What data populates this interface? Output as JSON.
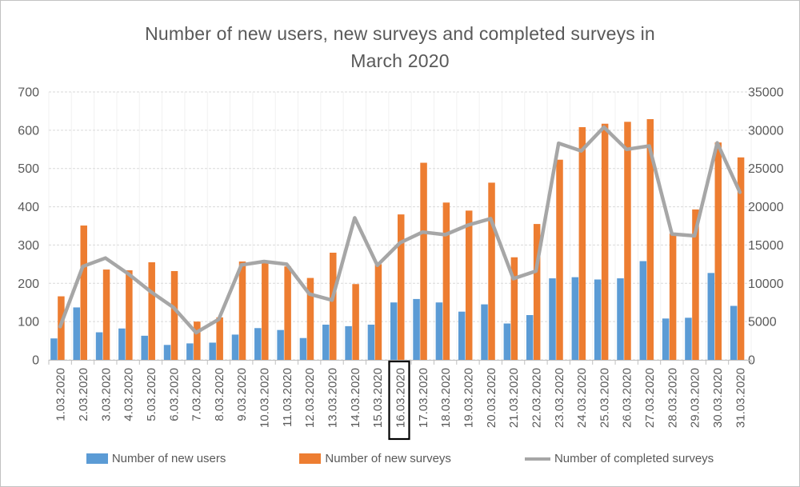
{
  "window": {
    "background": "#FFFFFF",
    "border_color": "#C2C2C2"
  },
  "colors": {
    "bar_users": "#5B9BD5",
    "bar_surveys": "#ED7D31",
    "line_completed": "#A6A6A6",
    "axis_text": "#595959",
    "title_text": "#595959",
    "gridline": "#DADADA",
    "vertical_gridline": "#F1F1F1",
    "axis_line": "#BFBFBF",
    "highlight_box": "#000000"
  },
  "chart_data": {
    "type": "combo",
    "title": "Number of new users, new surveys and completed surveys in March 2020",
    "title_lines": [
      "Number of new users, new surveys and completed surveys in",
      "March 2020"
    ],
    "categories": [
      "1.03.2020",
      "2.03.2020",
      "3.03.2020",
      "4.03.2020",
      "5.03.2020",
      "6.03.2020",
      "7.03.2020",
      "8.03.2020",
      "9.03.2020",
      "10.03.2020",
      "11.03.2020",
      "12.03.2020",
      "13.03.2020",
      "14.03.2020",
      "15.03.2020",
      "16.03.2020",
      "17.03.2020",
      "18.03.2020",
      "19.03.2020",
      "20.03.2020",
      "21.03.2020",
      "22.03.2020",
      "23.03.2020",
      "24.03.2020",
      "25.03.2020",
      "26.03.2020",
      "27.03.2020",
      "28.03.2020",
      "29.03.2020",
      "30.03.2020",
      "31.03.2020"
    ],
    "series": [
      {
        "name": "Number of new users",
        "type": "bar",
        "axis": "left",
        "color": "#5B9BD5",
        "values": [
          56,
          137,
          72,
          82,
          63,
          39,
          43,
          45,
          66,
          83,
          78,
          57,
          92,
          88,
          92,
          150,
          159,
          150,
          126,
          145,
          95,
          117,
          213,
          216,
          210,
          213,
          258,
          108,
          110,
          227,
          141
        ]
      },
      {
        "name": "Number of new surveys",
        "type": "bar",
        "axis": "left",
        "color": "#ED7D31",
        "values": [
          166,
          351,
          236,
          234,
          255,
          232,
          100,
          111,
          257,
          254,
          244,
          214,
          280,
          198,
          250,
          380,
          515,
          411,
          390,
          463,
          268,
          355,
          523,
          608,
          617,
          622,
          629,
          330,
          393,
          568,
          529
        ]
      },
      {
        "name": "Number of completed surveys",
        "type": "line",
        "axis": "right",
        "color": "#A6A6A6",
        "values": [
          4350,
          12200,
          13300,
          11250,
          8900,
          6850,
          3550,
          5300,
          12400,
          12850,
          12500,
          8600,
          7800,
          18550,
          12350,
          15300,
          16700,
          16350,
          17600,
          18450,
          10600,
          11600,
          28300,
          27300,
          30400,
          27500,
          27950,
          16450,
          16200,
          28350,
          21900
        ]
      }
    ],
    "left_axis": {
      "min": 0,
      "max": 700,
      "step": 100,
      "tick_labels": [
        "0",
        "100",
        "200",
        "300",
        "400",
        "500",
        "600",
        "700"
      ]
    },
    "right_axis": {
      "min": 0,
      "max": 35000,
      "step": 5000,
      "tick_labels": [
        "0",
        "5000",
        "10000",
        "15000",
        "20000",
        "25000",
        "30000",
        "35000"
      ]
    },
    "grid": true,
    "legend_position": "bottom",
    "highlighted_category": "16.03.2020"
  }
}
